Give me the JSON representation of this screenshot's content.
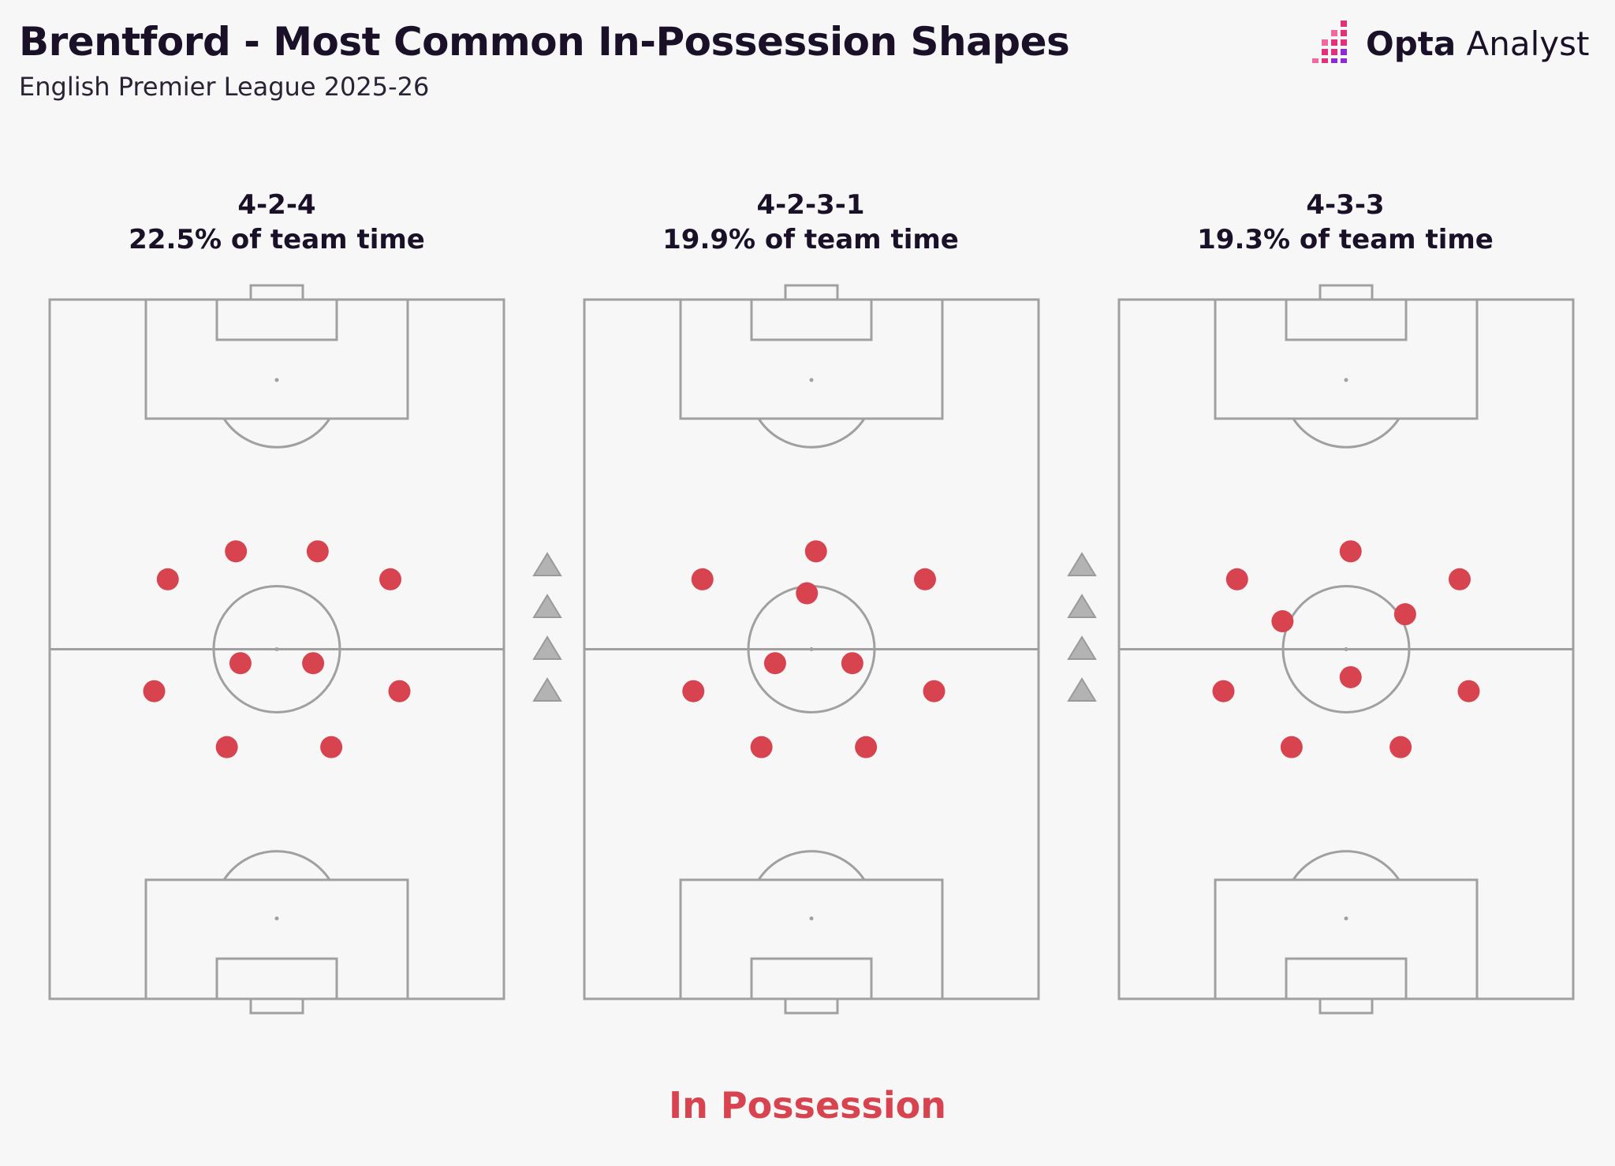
{
  "header": {
    "title": "Brentford - Most Common In-Possession Shapes",
    "subtitle": "English Premier League 2025-26"
  },
  "logo": {
    "brand_bold": "Opta",
    "brand_light": "Analyst",
    "icon": "opta-bars-icon"
  },
  "colors": {
    "player_dot": "#d7444f",
    "pitch_line": "#a0a0a0",
    "arrow": "#b3b3b3",
    "brand_accent": "#e0317a"
  },
  "shapes": [
    {
      "formation": "4-2-4",
      "share": "22.5% of team time",
      "players": [
        [
          0.26,
          0.4
        ],
        [
          0.41,
          0.36
        ],
        [
          0.59,
          0.36
        ],
        [
          0.75,
          0.4
        ],
        [
          0.42,
          0.52
        ],
        [
          0.58,
          0.52
        ],
        [
          0.23,
          0.56
        ],
        [
          0.77,
          0.56
        ],
        [
          0.39,
          0.64
        ],
        [
          0.62,
          0.64
        ]
      ]
    },
    {
      "formation": "4-2-3-1",
      "share": "19.9% of team time",
      "players": [
        [
          0.51,
          0.36
        ],
        [
          0.26,
          0.4
        ],
        [
          0.75,
          0.4
        ],
        [
          0.49,
          0.42
        ],
        [
          0.42,
          0.52
        ],
        [
          0.59,
          0.52
        ],
        [
          0.24,
          0.56
        ],
        [
          0.77,
          0.56
        ],
        [
          0.39,
          0.64
        ],
        [
          0.62,
          0.64
        ]
      ]
    },
    {
      "formation": "4-3-3",
      "share": "19.3% of team time",
      "players": [
        [
          0.51,
          0.36
        ],
        [
          0.26,
          0.4
        ],
        [
          0.75,
          0.4
        ],
        [
          0.36,
          0.46
        ],
        [
          0.63,
          0.45
        ],
        [
          0.51,
          0.54
        ],
        [
          0.23,
          0.56
        ],
        [
          0.77,
          0.56
        ],
        [
          0.38,
          0.64
        ],
        [
          0.62,
          0.64
        ]
      ]
    }
  ],
  "footer": {
    "label": "In Possession"
  }
}
